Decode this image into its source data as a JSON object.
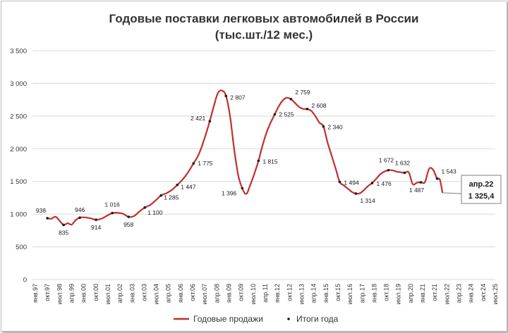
{
  "chart_data": {
    "type": "line",
    "title_line1": "Годовые поставки легковых автомобилей в России",
    "title_line2": "(тыс.шт./12 мес.)",
    "ylim": [
      0,
      3500
    ],
    "yticks": [
      "0",
      "500",
      "1 000",
      "1 500",
      "2 000",
      "2 500",
      "3 000",
      "3 500"
    ],
    "ytick_values": [
      0,
      500,
      1000,
      1500,
      2000,
      2500,
      3000,
      3500
    ],
    "grid": true,
    "x_range": [
      "1997-01",
      "2025-07"
    ],
    "xticks": [
      "янв.97",
      "окт.97",
      "июл.98",
      "апр.99",
      "янв.00",
      "окт.00",
      "июл.01",
      "апр.02",
      "янв.03",
      "окт.03",
      "июл.04",
      "апр.05",
      "янв.06",
      "окт.06",
      "июл.07",
      "апр.08",
      "янв.09",
      "окт.09",
      "июл.10",
      "апр.11",
      "янв.12",
      "окт.12",
      "июл.13",
      "апр.14",
      "янв.15",
      "окт.15",
      "июл.16",
      "апр.17",
      "янв.18",
      "окт.18",
      "июл.19",
      "апр.20",
      "янв.21",
      "окт.21",
      "июл.22",
      "апр.23",
      "янв.24",
      "окт.24",
      "июл.25"
    ],
    "series": [
      {
        "name": "Годовые продажи",
        "color": "#c0302b",
        "points": [
          [
            "1997-12",
            938
          ],
          [
            "1998-03",
            930
          ],
          [
            "1998-06",
            960
          ],
          [
            "1998-09",
            900
          ],
          [
            "1998-12",
            835
          ],
          [
            "1999-03",
            860
          ],
          [
            "1999-06",
            840
          ],
          [
            "1999-09",
            910
          ],
          [
            "1999-12",
            946
          ],
          [
            "2000-04",
            950
          ],
          [
            "2000-08",
            935
          ],
          [
            "2000-12",
            914
          ],
          [
            "2001-04",
            930
          ],
          [
            "2001-08",
            975
          ],
          [
            "2001-12",
            1016
          ],
          [
            "2002-04",
            1020
          ],
          [
            "2002-08",
            1005
          ],
          [
            "2002-12",
            958
          ],
          [
            "2003-04",
            970
          ],
          [
            "2003-08",
            1040
          ],
          [
            "2003-12",
            1100
          ],
          [
            "2004-04",
            1140
          ],
          [
            "2004-08",
            1210
          ],
          [
            "2004-12",
            1285
          ],
          [
            "2005-04",
            1320
          ],
          [
            "2005-08",
            1370
          ],
          [
            "2005-12",
            1447
          ],
          [
            "2006-04",
            1530
          ],
          [
            "2006-08",
            1640
          ],
          [
            "2006-12",
            1775
          ],
          [
            "2007-04",
            1920
          ],
          [
            "2007-08",
            2150
          ],
          [
            "2007-12",
            2421
          ],
          [
            "2008-03",
            2650
          ],
          [
            "2008-06",
            2850
          ],
          [
            "2008-09",
            2890
          ],
          [
            "2008-12",
            2807
          ],
          [
            "2009-03",
            2500
          ],
          [
            "2009-06",
            2000
          ],
          [
            "2009-09",
            1600
          ],
          [
            "2009-12",
            1396
          ],
          [
            "2010-03",
            1310
          ],
          [
            "2010-06",
            1450
          ],
          [
            "2010-09",
            1620
          ],
          [
            "2010-12",
            1815
          ],
          [
            "2011-03",
            2050
          ],
          [
            "2011-06",
            2250
          ],
          [
            "2011-09",
            2400
          ],
          [
            "2011-12",
            2525
          ],
          [
            "2012-03",
            2650
          ],
          [
            "2012-06",
            2740
          ],
          [
            "2012-09",
            2780
          ],
          [
            "2012-12",
            2759
          ],
          [
            "2013-03",
            2700
          ],
          [
            "2013-06",
            2640
          ],
          [
            "2013-09",
            2610
          ],
          [
            "2013-12",
            2608
          ],
          [
            "2014-03",
            2580
          ],
          [
            "2014-06",
            2500
          ],
          [
            "2014-09",
            2400
          ],
          [
            "2014-12",
            2340
          ],
          [
            "2015-03",
            2100
          ],
          [
            "2015-06",
            1900
          ],
          [
            "2015-09",
            1700
          ],
          [
            "2015-12",
            1494
          ],
          [
            "2016-03",
            1440
          ],
          [
            "2016-06",
            1390
          ],
          [
            "2016-09",
            1340
          ],
          [
            "2016-12",
            1314
          ],
          [
            "2017-03",
            1320
          ],
          [
            "2017-06",
            1370
          ],
          [
            "2017-09",
            1430
          ],
          [
            "2017-12",
            1476
          ],
          [
            "2018-03",
            1540
          ],
          [
            "2018-06",
            1610
          ],
          [
            "2018-09",
            1650
          ],
          [
            "2018-12",
            1672
          ],
          [
            "2019-03",
            1670
          ],
          [
            "2019-06",
            1650
          ],
          [
            "2019-09",
            1640
          ],
          [
            "2019-12",
            1632
          ],
          [
            "2020-03",
            1640
          ],
          [
            "2020-06",
            1460
          ],
          [
            "2020-09",
            1480
          ],
          [
            "2020-12",
            1487
          ],
          [
            "2021-03",
            1490
          ],
          [
            "2021-06",
            1690
          ],
          [
            "2021-09",
            1680
          ],
          [
            "2021-12",
            1543
          ],
          [
            "2022-02",
            1530
          ],
          [
            "2022-04",
            1325.4
          ]
        ]
      },
      {
        "name": "Итоги года",
        "color": "#1a1a2e",
        "points": [
          [
            "1997-12",
            938
          ],
          [
            "1998-12",
            835
          ],
          [
            "1999-12",
            946
          ],
          [
            "2000-12",
            914
          ],
          [
            "2001-12",
            1016
          ],
          [
            "2002-12",
            958
          ],
          [
            "2003-12",
            1100
          ],
          [
            "2004-12",
            1285
          ],
          [
            "2005-12",
            1447
          ],
          [
            "2006-12",
            1775
          ],
          [
            "2007-12",
            2421
          ],
          [
            "2008-12",
            2807
          ],
          [
            "2009-12",
            1396
          ],
          [
            "2010-12",
            1815
          ],
          [
            "2011-12",
            2525
          ],
          [
            "2012-12",
            2759
          ],
          [
            "2013-12",
            2608
          ],
          [
            "2014-12",
            2340
          ],
          [
            "2015-12",
            1494
          ],
          [
            "2016-12",
            1314
          ],
          [
            "2017-12",
            1476
          ],
          [
            "2018-12",
            1672
          ],
          [
            "2019-12",
            1632
          ],
          [
            "2020-12",
            1487
          ],
          [
            "2021-12",
            1543
          ]
        ]
      }
    ],
    "data_labels": [
      "938",
      "835",
      "946",
      "914",
      "1 016",
      "958",
      "1 100",
      "1 285",
      "1 447",
      "1 775",
      "2 421",
      "2 807",
      "1 396",
      "1 815",
      "2 525",
      "2 759",
      "2 608",
      "2 340",
      "1 494",
      "1 314",
      "1 476",
      "1 672",
      "1 632",
      "1 487",
      "1 543"
    ],
    "callout": {
      "date": "2022-04",
      "value": 1325.4,
      "line1": "апр.22",
      "line2": "1 325,4"
    },
    "legend": [
      {
        "label": "Годовые продажи",
        "marker": "line",
        "color": "#c0302b"
      },
      {
        "label": "Итоги года",
        "marker": "dot",
        "color": "#1a1a2e"
      }
    ],
    "legend_position": "bottom",
    "colors": {
      "gridline": "#d9d9d9",
      "text": "#333333",
      "callout_border": "#7f7f7f"
    }
  }
}
